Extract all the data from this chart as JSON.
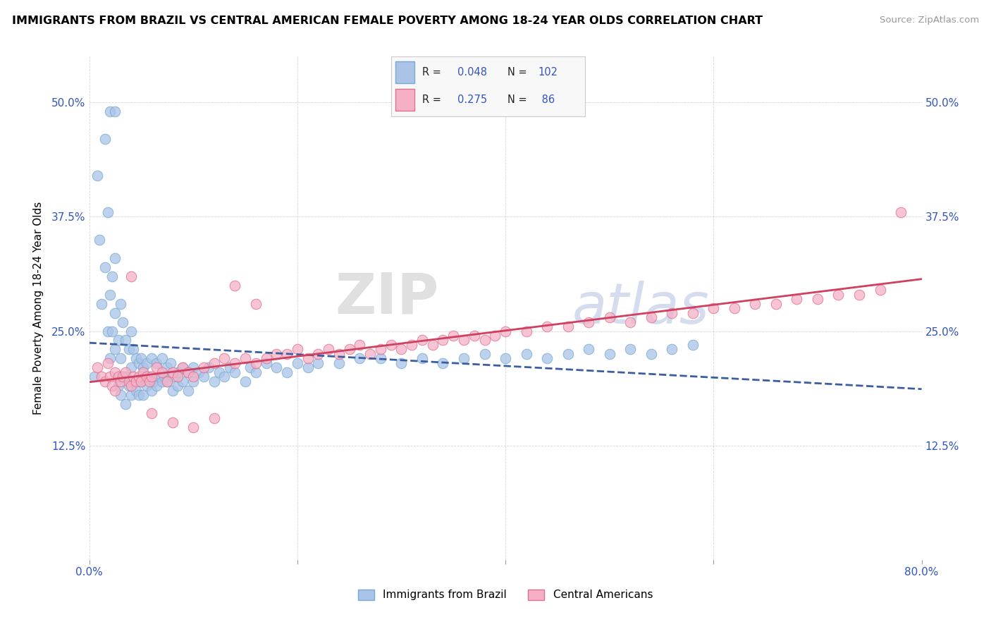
{
  "title": "IMMIGRANTS FROM BRAZIL VS CENTRAL AMERICAN FEMALE POVERTY AMONG 18-24 YEAR OLDS CORRELATION CHART",
  "source": "Source: ZipAtlas.com",
  "ylabel": "Female Poverty Among 18-24 Year Olds",
  "xlim": [
    0.0,
    0.8
  ],
  "ylim": [
    0.0,
    0.55
  ],
  "xticks": [
    0.0,
    0.2,
    0.4,
    0.6,
    0.8
  ],
  "xticklabels": [
    "0.0%",
    "",
    "",
    "",
    "80.0%"
  ],
  "yticks": [
    0.0,
    0.125,
    0.25,
    0.375,
    0.5
  ],
  "yticklabels": [
    "",
    "12.5%",
    "25.0%",
    "37.5%",
    "50.0%"
  ],
  "color_brazil": "#aac4e8",
  "color_central": "#f5b0c5",
  "color_brazil_line": "#3a5fa0",
  "color_central_line": "#d04060",
  "color_brazil_edge": "#7aaad0",
  "color_central_edge": "#e07090",
  "watermark_zip": "ZIP",
  "watermark_atlas": "atlas",
  "brazil_x": [
    0.005,
    0.008,
    0.01,
    0.012,
    0.015,
    0.015,
    0.018,
    0.018,
    0.02,
    0.02,
    0.022,
    0.022,
    0.025,
    0.025,
    0.025,
    0.028,
    0.028,
    0.03,
    0.03,
    0.03,
    0.032,
    0.032,
    0.035,
    0.035,
    0.035,
    0.038,
    0.038,
    0.04,
    0.04,
    0.04,
    0.042,
    0.042,
    0.045,
    0.045,
    0.048,
    0.048,
    0.05,
    0.05,
    0.052,
    0.052,
    0.055,
    0.055,
    0.058,
    0.06,
    0.06,
    0.062,
    0.065,
    0.065,
    0.068,
    0.07,
    0.07,
    0.072,
    0.075,
    0.075,
    0.078,
    0.08,
    0.08,
    0.085,
    0.085,
    0.09,
    0.09,
    0.095,
    0.095,
    0.1,
    0.1,
    0.105,
    0.11,
    0.115,
    0.12,
    0.125,
    0.13,
    0.135,
    0.14,
    0.15,
    0.155,
    0.16,
    0.17,
    0.18,
    0.19,
    0.2,
    0.21,
    0.22,
    0.24,
    0.26,
    0.28,
    0.3,
    0.32,
    0.34,
    0.36,
    0.38,
    0.4,
    0.42,
    0.44,
    0.46,
    0.48,
    0.5,
    0.52,
    0.54,
    0.56,
    0.58,
    0.02,
    0.025
  ],
  "brazil_y": [
    0.2,
    0.42,
    0.35,
    0.28,
    0.46,
    0.32,
    0.38,
    0.25,
    0.29,
    0.22,
    0.31,
    0.25,
    0.23,
    0.27,
    0.33,
    0.24,
    0.19,
    0.28,
    0.22,
    0.18,
    0.26,
    0.2,
    0.24,
    0.2,
    0.17,
    0.23,
    0.19,
    0.25,
    0.21,
    0.18,
    0.23,
    0.195,
    0.22,
    0.185,
    0.215,
    0.18,
    0.22,
    0.195,
    0.21,
    0.18,
    0.215,
    0.19,
    0.2,
    0.22,
    0.185,
    0.195,
    0.215,
    0.19,
    0.2,
    0.22,
    0.195,
    0.2,
    0.21,
    0.195,
    0.215,
    0.2,
    0.185,
    0.205,
    0.19,
    0.21,
    0.195,
    0.205,
    0.185,
    0.21,
    0.195,
    0.205,
    0.2,
    0.21,
    0.195,
    0.205,
    0.2,
    0.21,
    0.205,
    0.195,
    0.21,
    0.205,
    0.215,
    0.21,
    0.205,
    0.215,
    0.21,
    0.215,
    0.215,
    0.22,
    0.22,
    0.215,
    0.22,
    0.215,
    0.22,
    0.225,
    0.22,
    0.225,
    0.22,
    0.225,
    0.23,
    0.225,
    0.23,
    0.225,
    0.23,
    0.235,
    0.49,
    0.49
  ],
  "central_x": [
    0.008,
    0.012,
    0.015,
    0.018,
    0.02,
    0.022,
    0.025,
    0.025,
    0.028,
    0.03,
    0.032,
    0.035,
    0.038,
    0.04,
    0.042,
    0.045,
    0.048,
    0.05,
    0.052,
    0.055,
    0.058,
    0.06,
    0.065,
    0.07,
    0.075,
    0.08,
    0.085,
    0.09,
    0.095,
    0.1,
    0.11,
    0.12,
    0.13,
    0.14,
    0.15,
    0.16,
    0.17,
    0.18,
    0.19,
    0.2,
    0.21,
    0.22,
    0.23,
    0.24,
    0.25,
    0.26,
    0.27,
    0.28,
    0.29,
    0.3,
    0.31,
    0.32,
    0.33,
    0.34,
    0.35,
    0.36,
    0.37,
    0.38,
    0.39,
    0.4,
    0.42,
    0.44,
    0.46,
    0.48,
    0.5,
    0.52,
    0.54,
    0.56,
    0.58,
    0.6,
    0.62,
    0.64,
    0.66,
    0.68,
    0.7,
    0.72,
    0.74,
    0.76,
    0.04,
    0.06,
    0.08,
    0.1,
    0.12,
    0.14,
    0.16,
    0.78
  ],
  "central_y": [
    0.21,
    0.2,
    0.195,
    0.215,
    0.2,
    0.19,
    0.205,
    0.185,
    0.2,
    0.195,
    0.2,
    0.205,
    0.195,
    0.19,
    0.2,
    0.195,
    0.2,
    0.195,
    0.205,
    0.2,
    0.195,
    0.2,
    0.21,
    0.205,
    0.195,
    0.205,
    0.2,
    0.21,
    0.205,
    0.2,
    0.21,
    0.215,
    0.22,
    0.215,
    0.22,
    0.215,
    0.22,
    0.225,
    0.225,
    0.23,
    0.22,
    0.225,
    0.23,
    0.225,
    0.23,
    0.235,
    0.225,
    0.23,
    0.235,
    0.23,
    0.235,
    0.24,
    0.235,
    0.24,
    0.245,
    0.24,
    0.245,
    0.24,
    0.245,
    0.25,
    0.25,
    0.255,
    0.255,
    0.26,
    0.265,
    0.26,
    0.265,
    0.27,
    0.27,
    0.275,
    0.275,
    0.28,
    0.28,
    0.285,
    0.285,
    0.29,
    0.29,
    0.295,
    0.31,
    0.16,
    0.15,
    0.145,
    0.155,
    0.3,
    0.28,
    0.38
  ]
}
